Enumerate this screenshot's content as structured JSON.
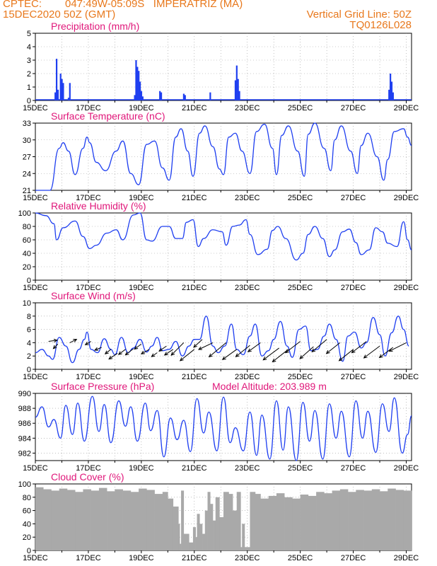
{
  "header": {
    "center": "CPTEC:",
    "location": "047:49W-05:09S   IMPERATRIZ (MA)",
    "run_date": "15DEC2020 50Z (GMT)",
    "grid_note": "Vertical Grid Line: 50Z",
    "code": "TQ0126L028"
  },
  "colors": {
    "header": "#e8781c",
    "title": "#e0177a",
    "series": "#1f3ff0",
    "cloud": "#a9a9a9",
    "wind_arrow": "#000000"
  },
  "x_ticks": [
    "15DEC",
    "17DEC",
    "19DEC",
    "21DEC",
    "23DEC",
    "25DEC",
    "27DEC",
    "29DEC"
  ],
  "chart_data": [
    {
      "type": "bar",
      "title": "Precipitation (mm/h)",
      "ylim": [
        0,
        5
      ],
      "yticks": [
        0,
        1,
        2,
        3,
        4,
        5
      ],
      "x_unit": "days since 15DEC 00Z",
      "x": [
        0.75,
        0.8,
        0.85,
        0.95,
        1.0,
        1.05,
        1.25,
        1.3,
        3.75,
        3.8,
        3.85,
        3.9,
        3.95,
        4.0,
        4.05,
        4.7,
        4.75,
        5.6,
        5.65,
        6.6,
        7.55,
        7.6,
        7.65,
        7.7,
        13.35,
        13.4,
        13.45,
        13.5
      ],
      "values": [
        0.6,
        3.1,
        0.8,
        2.0,
        1.6,
        1.3,
        0.2,
        1.3,
        0.4,
        3.0,
        2.5,
        2.2,
        1.4,
        0.7,
        0.3,
        0.7,
        0.6,
        0.5,
        0.4,
        0.6,
        1.5,
        2.6,
        1.6,
        0.7,
        0.8,
        2.0,
        1.4,
        0.6
      ]
    },
    {
      "type": "line",
      "title": "Surface Temperature (nC)",
      "ylim": [
        21,
        33
      ],
      "yticks": [
        21,
        24,
        27,
        30,
        33
      ],
      "x_unit": "days since 15DEC 00Z",
      "series": [
        {
          "name": "Temperature",
          "x": [
            0.0,
            0.2,
            0.4,
            0.55,
            0.9,
            1.05,
            1.25,
            1.5,
            1.8,
            1.95,
            2.05,
            2.3,
            2.65,
            3.05,
            3.3,
            3.6,
            3.9,
            4.2,
            4.5,
            4.8,
            5.05,
            5.3,
            5.5,
            5.75,
            5.95,
            6.2,
            6.4,
            6.7,
            6.95,
            7.1,
            7.3,
            7.55,
            7.8,
            8.1,
            8.35,
            8.65,
            8.95,
            9.1,
            9.3,
            9.55,
            9.9,
            10.15,
            10.3,
            10.55,
            10.9,
            11.15,
            11.3,
            11.55,
            11.9,
            12.15,
            12.3,
            12.55,
            12.9,
            13.15,
            13.3,
            13.55,
            13.9,
            14.05,
            14.2
          ],
          "values": [
            20.8,
            20.2,
            19.8,
            20.2,
            28.5,
            29.5,
            28.0,
            23.8,
            28.5,
            30.5,
            29.5,
            26.0,
            24.5,
            28.0,
            29.8,
            24.0,
            22.0,
            29.2,
            29.8,
            25.0,
            22.8,
            30.5,
            32.0,
            28.0,
            23.5,
            31.2,
            32.5,
            28.8,
            24.8,
            23.8,
            30.5,
            31.2,
            28.0,
            24.0,
            31.5,
            32.8,
            28.5,
            23.8,
            30.8,
            32.5,
            28.0,
            23.5,
            31.0,
            33.0,
            28.5,
            24.5,
            30.0,
            32.5,
            28.0,
            24.0,
            29.0,
            31.2,
            27.0,
            22.8,
            26.5,
            31.5,
            32.0,
            30.5,
            29.0
          ]
        }
      ]
    },
    {
      "type": "line",
      "title": "Relative Humidity (%)",
      "ylim": [
        0,
        100
      ],
      "yticks": [
        0,
        20,
        40,
        60,
        80,
        100
      ],
      "x_unit": "days since 15DEC 00Z",
      "series": [
        {
          "name": "Relative Humidity",
          "x": [
            0.0,
            0.4,
            0.7,
            0.8,
            1.05,
            1.5,
            1.8,
            2.05,
            2.3,
            2.7,
            3.05,
            3.3,
            3.7,
            3.95,
            4.2,
            4.4,
            4.8,
            5.05,
            5.3,
            5.55,
            5.7,
            5.95,
            6.15,
            6.35,
            6.7,
            7.05,
            7.2,
            7.45,
            7.7,
            7.95,
            8.1,
            8.4,
            8.75,
            8.95,
            9.15,
            9.45,
            9.85,
            10.1,
            10.3,
            10.55,
            10.85,
            11.1,
            11.3,
            11.6,
            11.85,
            12.1,
            12.3,
            12.6,
            12.85,
            13.1,
            13.3,
            13.65,
            13.9,
            14.05,
            14.2
          ],
          "values": [
            100,
            96,
            84,
            60,
            78,
            88,
            65,
            47,
            52,
            70,
            75,
            60,
            97,
            100,
            60,
            58,
            80,
            80,
            62,
            62,
            86,
            90,
            50,
            62,
            75,
            72,
            52,
            80,
            82,
            90,
            68,
            38,
            46,
            74,
            80,
            62,
            30,
            40,
            68,
            80,
            62,
            35,
            45,
            72,
            76,
            56,
            38,
            45,
            78,
            72,
            55,
            50,
            87,
            60,
            45
          ]
        }
      ]
    },
    {
      "type": "line",
      "title": "Surface Wind (m/s)",
      "ylim": [
        0,
        10
      ],
      "yticks": [
        0,
        2,
        4,
        6,
        8,
        10
      ],
      "x_unit": "days since 15DEC 00Z",
      "series": [
        {
          "name": "Wind speed",
          "x": [
            0.0,
            0.25,
            0.5,
            0.65,
            0.9,
            1.15,
            1.4,
            1.65,
            1.85,
            1.95,
            2.1,
            2.35,
            2.6,
            2.85,
            3.0,
            3.25,
            3.5,
            3.7,
            3.95,
            4.2,
            4.4,
            4.6,
            4.8,
            5.05,
            5.3,
            5.55,
            5.8,
            6.0,
            6.2,
            6.45,
            6.7,
            6.9,
            7.15,
            7.4,
            7.6,
            7.85,
            8.1,
            8.3,
            8.55,
            8.8,
            9.0,
            9.25,
            9.5,
            9.7,
            9.95,
            10.2,
            10.4,
            10.65,
            10.9,
            11.1,
            11.35,
            11.6,
            11.8,
            12.05,
            12.3,
            12.5,
            12.75,
            13.0,
            13.2,
            13.45,
            13.7,
            13.9,
            14.1
          ],
          "values": [
            2.5,
            3.0,
            2.0,
            1.5,
            4.8,
            3.5,
            1.0,
            3.0,
            4.5,
            5.6,
            3.0,
            2.5,
            4.6,
            3.0,
            2.2,
            4.8,
            2.5,
            3.2,
            4.5,
            2.6,
            3.5,
            4.8,
            2.8,
            3.0,
            4.2,
            2.0,
            3.5,
            4.5,
            4.5,
            8.0,
            3.5,
            2.5,
            3.5,
            6.8,
            3.0,
            2.2,
            5.0,
            6.8,
            2.0,
            2.8,
            4.5,
            7.2,
            3.5,
            1.8,
            6.0,
            6.5,
            2.8,
            3.0,
            5.0,
            6.8,
            4.5,
            1.2,
            5.0,
            5.6,
            3.2,
            4.0,
            7.8,
            5.2,
            2.0,
            5.5,
            8.0,
            6.0,
            3.5
          ]
        }
      ],
      "wind_barbs": {
        "x": [
          0.5,
          0.85,
          1.3,
          2.1,
          2.5,
          2.85,
          3.1,
          3.4,
          3.7,
          4.0,
          4.3,
          4.6,
          4.95,
          5.2,
          5.6,
          6.0,
          6.3,
          6.7,
          7.2,
          7.6,
          8.1,
          8.5,
          9.2,
          9.55,
          10.0,
          10.5,
          11.0,
          11.5,
          12.0,
          12.5,
          13.0,
          13.5,
          14.0
        ],
        "y": [
          4.2,
          3.8,
          4.0,
          4.2,
          3.3,
          3.0,
          2.4,
          3.0,
          3.1,
          3.8,
          3.0,
          2.5,
          3.5,
          3.0,
          4.0,
          3.0,
          4.5,
          4.0,
          4.0,
          3.0,
          3.6,
          4.0,
          3.2,
          3.0,
          4.2,
          3.4,
          4.5,
          4.0,
          3.0,
          4.2,
          3.5,
          3.3,
          4.0
        ],
        "u": [
          1.5,
          -0.8,
          1.2,
          -1.0,
          -1.2,
          -1.0,
          -1.5,
          -1.2,
          -1.4,
          -1.2,
          -1.4,
          -1.0,
          -1.3,
          -1.5,
          -2.2,
          -2.5,
          -1.5,
          -2.5,
          -3.0,
          -2.5,
          -2.5,
          -2.2,
          -2.8,
          -2.8,
          -2.6,
          -2.4,
          -2.6,
          -2.4,
          -2.5,
          -2.6,
          -2.8,
          -2.4,
          -3.0
        ],
        "v": [
          0.2,
          -0.8,
          0.6,
          -0.6,
          -0.5,
          -0.8,
          -1.0,
          -0.9,
          -1.1,
          -0.9,
          -0.8,
          -0.7,
          -0.9,
          -1.0,
          -2.2,
          -2.0,
          -1.4,
          -1.2,
          -2.5,
          -1.8,
          -2.0,
          -1.6,
          -2.1,
          -2.2,
          -2.0,
          -2.1,
          -2.2,
          -1.9,
          -2.0,
          -2.0,
          -2.1,
          -1.8,
          -1.5
        ]
      }
    },
    {
      "type": "line",
      "title": "Surface Pressure (hPa)",
      "annotation": "Model Altitude: 203.989 m",
      "ylim": [
        981,
        990
      ],
      "yticks": [
        982,
        984,
        986,
        988,
        990
      ],
      "x_unit": "days since 15DEC 00Z",
      "series": [
        {
          "name": "Pressure",
          "x": [
            0.0,
            0.25,
            0.5,
            0.7,
            0.95,
            1.15,
            1.4,
            1.6,
            1.85,
            2.15,
            2.4,
            2.6,
            2.85,
            3.15,
            3.4,
            3.6,
            3.85,
            4.15,
            4.35,
            4.6,
            4.85,
            5.1,
            5.35,
            5.6,
            5.85,
            6.1,
            6.35,
            6.55,
            6.85,
            7.1,
            7.35,
            7.55,
            7.85,
            8.1,
            8.35,
            8.55,
            8.85,
            9.1,
            9.35,
            9.55,
            9.85,
            10.1,
            10.35,
            10.55,
            10.85,
            11.1,
            11.35,
            11.55,
            11.85,
            12.1,
            12.35,
            12.55,
            12.85,
            13.1,
            13.35,
            13.55,
            13.85,
            14.05,
            14.2
          ],
          "values": [
            986.8,
            988.2,
            985.5,
            986.5,
            984.0,
            988.4,
            984.5,
            988.7,
            983.6,
            989.6,
            984.9,
            988.5,
            983.4,
            989.0,
            985.6,
            988.2,
            983.6,
            988.7,
            985.0,
            987.7,
            981.5,
            986.7,
            983.8,
            986.4,
            982.2,
            989.3,
            984.7,
            987.5,
            982.3,
            989.5,
            983.4,
            985.4,
            982.3,
            987.5,
            981.7,
            987.1,
            981.2,
            989.0,
            982.4,
            988.2,
            981.0,
            988.8,
            983.6,
            987.7,
            981.2,
            988.6,
            984.0,
            987.6,
            981.5,
            989.0,
            984.0,
            987.6,
            982.1,
            988.6,
            984.9,
            989.4,
            982.0,
            984.5,
            987.0
          ]
        }
      ]
    },
    {
      "type": "area",
      "title": "Cloud Cover (%)",
      "ylim": [
        0,
        100
      ],
      "yticks": [
        0,
        20,
        40,
        60,
        80,
        100
      ],
      "x_unit": "days since 15DEC 00Z",
      "series": [
        {
          "name": "Cloud cover",
          "x": [
            0.0,
            0.3,
            0.6,
            0.9,
            1.2,
            1.5,
            1.8,
            2.1,
            2.4,
            2.7,
            3.0,
            3.3,
            3.6,
            3.9,
            4.2,
            4.5,
            4.8,
            5.0,
            5.2,
            5.4,
            5.45,
            5.5,
            5.6,
            5.8,
            5.95,
            6.05,
            6.1,
            6.2,
            6.3,
            6.4,
            6.5,
            6.6,
            6.7,
            6.8,
            6.95,
            7.1,
            7.3,
            7.45,
            7.6,
            7.75,
            7.8,
            7.9,
            8.0,
            8.1,
            8.3,
            8.5,
            8.8,
            9.1,
            9.4,
            9.7,
            10.0,
            10.3,
            10.6,
            10.9,
            11.2,
            11.5,
            11.8,
            12.1,
            12.4,
            12.7,
            13.0,
            13.3,
            13.6,
            13.9,
            14.2
          ],
          "values": [
            95,
            92,
            90,
            93,
            91,
            88,
            92,
            90,
            94,
            89,
            92,
            90,
            88,
            93,
            91,
            85,
            88,
            78,
            66,
            40,
            10,
            90,
            25,
            12,
            35,
            20,
            55,
            40,
            25,
            60,
            88,
            70,
            45,
            80,
            50,
            88,
            85,
            60,
            88,
            5,
            40,
            5,
            5,
            88,
            85,
            78,
            82,
            86,
            80,
            78,
            84,
            82,
            88,
            86,
            90,
            92,
            88,
            91,
            90,
            92,
            89,
            93,
            91,
            90,
            88
          ]
        }
      ]
    }
  ]
}
